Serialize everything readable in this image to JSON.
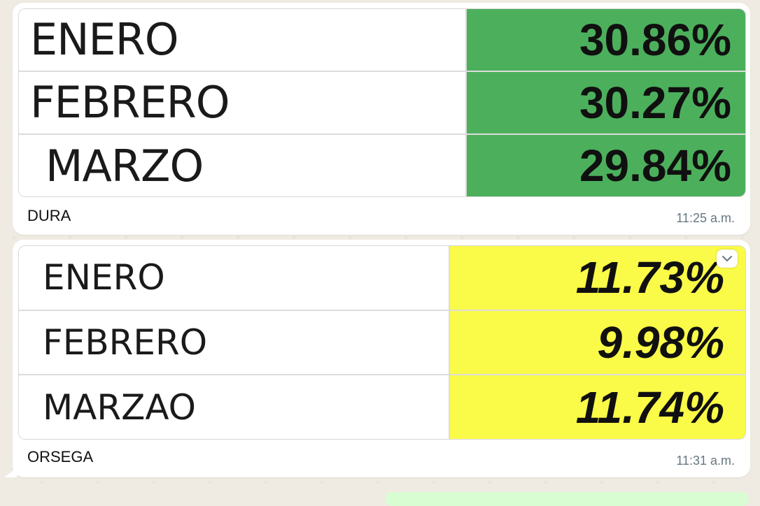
{
  "messages": [
    {
      "rows": [
        {
          "month": "ENERO",
          "value": "30.86%"
        },
        {
          "month": "FEBRERO",
          "value": "30.27%"
        },
        {
          "month": "MARZO",
          "value": "29.84%"
        }
      ],
      "caption": "DURA",
      "time": "11:25 a.m.",
      "highlight_color": "#4caf5c"
    },
    {
      "rows": [
        {
          "month": "ENERO",
          "value": "11.73%"
        },
        {
          "month": "FEBRERO",
          "value": "9.98%"
        },
        {
          "month": "MARZAO",
          "value": "11.74%"
        }
      ],
      "caption": "ORSEGA",
      "time": "11:31 a.m.",
      "highlight_color": "#fafa48",
      "menu_icon": "chevron-down-icon"
    }
  ]
}
